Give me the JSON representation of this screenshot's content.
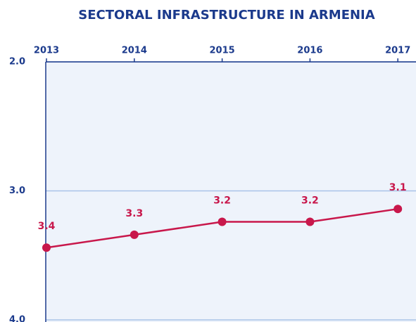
{
  "chart_data": {
    "type": "line",
    "title": "SECTORAL INFRASTRUCTURE IN ARMENIA",
    "categories": [
      "2013",
      "2014",
      "2015",
      "2016",
      "2017"
    ],
    "series": [
      {
        "color": "#c8174b",
        "values": [
          3.44,
          3.34,
          3.24,
          3.24,
          3.14
        ],
        "value_labels": [
          "3.4",
          "3.3",
          "3.2",
          "3.2",
          "3.1"
        ]
      }
    ],
    "ylim": [
      4,
      2
    ],
    "yticks": [
      {
        "value": 2,
        "label": "2.0"
      },
      {
        "value": 3,
        "label": "3.0"
      },
      {
        "value": 4,
        "label": "4.0"
      }
    ],
    "grid": true,
    "x_axis_position": "top"
  }
}
